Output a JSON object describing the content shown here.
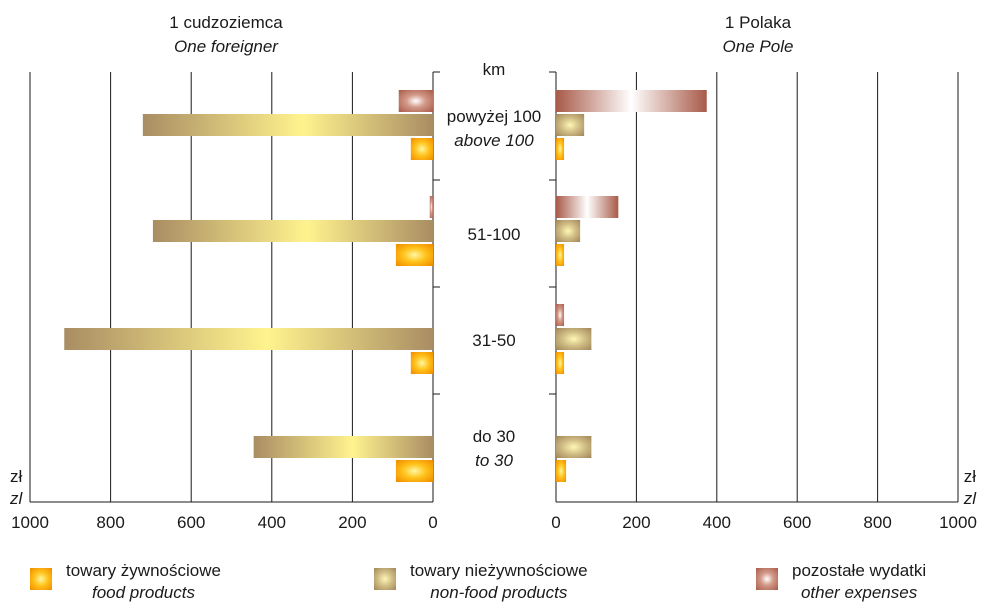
{
  "chart_data": [
    {
      "type": "bar",
      "orientation": "horizontal",
      "title": "1 cudzoziemca",
      "subtitle": "One foreigner",
      "unit_label": "zł",
      "unit_label_en": "zl",
      "xlim": [
        0,
        1000
      ],
      "ticks": [
        "1000",
        "800",
        "600",
        "400",
        "200",
        "0"
      ],
      "axis_direction": "reversed",
      "grid": true,
      "categories": [
        "above 100",
        "51-100",
        "31-50",
        "to 30"
      ],
      "series": [
        {
          "name": "towary żywnościowe",
          "values": [
            55,
            92,
            55,
            92
          ]
        },
        {
          "name": "towary nieżywnościowe",
          "values": [
            720,
            695,
            915,
            445
          ]
        },
        {
          "name": "pozostałe wydatki",
          "values": [
            85,
            8,
            0,
            0
          ]
        }
      ]
    },
    {
      "type": "bar",
      "orientation": "horizontal",
      "title": "1 Polaka",
      "subtitle": "One Pole",
      "unit_label": "zł",
      "unit_label_en": "zl",
      "xlim": [
        0,
        1000
      ],
      "ticks": [
        "0",
        "200",
        "400",
        "600",
        "800",
        "1000"
      ],
      "grid": true,
      "categories": [
        "above 100",
        "51-100",
        "31-50",
        "to 30"
      ],
      "series": [
        {
          "name": "towary żywnościowe",
          "values": [
            20,
            20,
            20,
            25
          ]
        },
        {
          "name": "towary nieżywnościowe",
          "values": [
            70,
            60,
            88,
            88
          ]
        },
        {
          "name": "pozostałe wydatki",
          "values": [
            375,
            155,
            20,
            0
          ]
        }
      ]
    }
  ],
  "center_axis": {
    "unit": "km",
    "groups": [
      {
        "pl": "powyżej 100",
        "en": "above 100"
      },
      {
        "pl": "51-100",
        "en": ""
      },
      {
        "pl": "31-50",
        "en": ""
      },
      {
        "pl": "do 30",
        "en": "to 30"
      }
    ]
  },
  "legend": [
    {
      "pl": "towary żywnościowe",
      "en": "food products",
      "color": "#f39a00"
    },
    {
      "pl": "towary nieżywnościowe",
      "en": "non-food products",
      "color": "#b29a6c"
    },
    {
      "pl": "pozostałe wydatki",
      "en": "other expenses",
      "color": "#b26452"
    }
  ]
}
